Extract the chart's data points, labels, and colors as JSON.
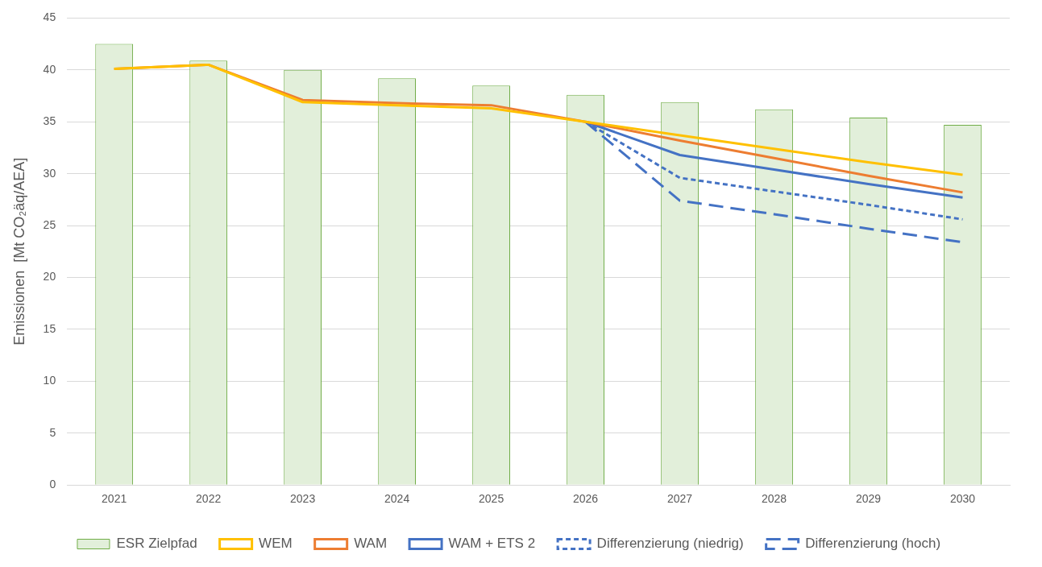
{
  "chart_data": {
    "type": "bar",
    "categories": [
      "2021",
      "2022",
      "2023",
      "2024",
      "2025",
      "2026",
      "2027",
      "2028",
      "2029",
      "2030"
    ],
    "ylabel": "Emissionen  [Mt CO₂äq/AEA]",
    "ylim": [
      0,
      45
    ],
    "yticks": [
      0,
      5,
      10,
      15,
      20,
      25,
      30,
      35,
      40,
      45
    ],
    "grid": "y",
    "legend": "bottom",
    "marker": "none",
    "series": [
      {
        "name": "ESR Zielpfad",
        "color": "#e2efda",
        "values": [
          42.5,
          40.9,
          40.0,
          39.2,
          38.5,
          37.6,
          36.9,
          36.2,
          35.4,
          34.7
        ]
      },
      {
        "name": "WEM",
        "type": "line",
        "color": "#ffc000",
        "line_style": "solid",
        "values": [
          40.1,
          40.5,
          36.9,
          36.6,
          36.3,
          35.0,
          33.7,
          32.4,
          31.1,
          29.9
        ]
      },
      {
        "name": "WAM",
        "type": "line",
        "color": "#ed7d31",
        "line_style": "solid",
        "values": [
          40.1,
          40.5,
          37.1,
          36.8,
          36.6,
          35.0,
          33.2,
          31.5,
          29.8,
          28.2
        ]
      },
      {
        "name": "WAM + ETS 2",
        "type": "line",
        "color": "#4472c4",
        "line_style": "solid",
        "values": [
          null,
          null,
          null,
          null,
          null,
          35.0,
          31.8,
          30.4,
          29.0,
          27.7
        ]
      },
      {
        "name": "Differenzierung (niedrig)",
        "type": "line",
        "color": "#4472c4",
        "line_style": "dotted",
        "values": [
          null,
          null,
          null,
          null,
          null,
          35.0,
          29.6,
          28.3,
          27.0,
          25.6
        ]
      },
      {
        "name": "Differenzierung (hoch)",
        "type": "line",
        "color": "#4472c4",
        "line_style": "dashed",
        "values": [
          null,
          null,
          null,
          null,
          null,
          35.0,
          27.4,
          26.1,
          24.7,
          23.4
        ]
      }
    ]
  }
}
